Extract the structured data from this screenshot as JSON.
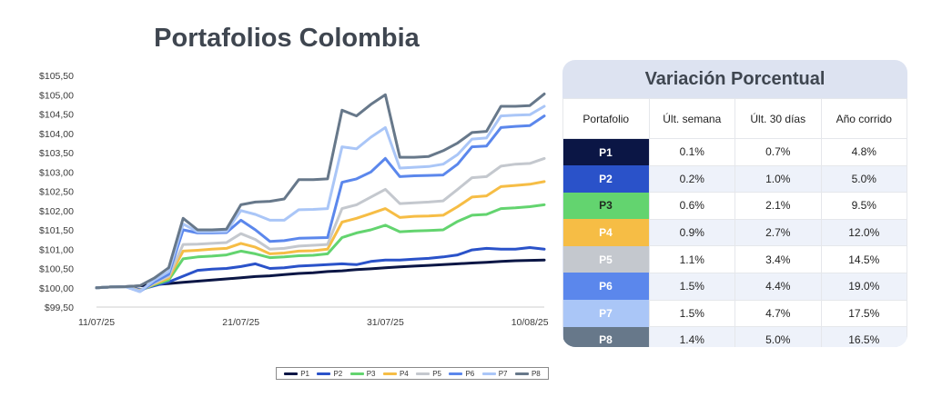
{
  "chart_data": {
    "type": "line",
    "title": "Portafolios Colombia",
    "x": [
      "11/07/25",
      "12/07/25",
      "13/07/25",
      "14/07/25",
      "15/07/25",
      "16/07/25",
      "17/07/25",
      "18/07/25",
      "19/07/25",
      "20/07/25",
      "21/07/25",
      "22/07/25",
      "23/07/25",
      "24/07/25",
      "25/07/25",
      "26/07/25",
      "27/07/25",
      "28/07/25",
      "29/07/25",
      "30/07/25",
      "31/07/25",
      "01/08/25",
      "02/08/25",
      "03/08/25",
      "04/08/25",
      "05/08/25",
      "06/08/25",
      "07/08/25",
      "08/08/25",
      "09/08/25",
      "10/08/25",
      "11/08/25"
    ],
    "x_ticks": [
      "11/07/25",
      "21/07/25",
      "31/07/25",
      "10/08/25"
    ],
    "y_ticks": [
      "$99,50",
      "$100,00",
      "$100,50",
      "$101,00",
      "$101,50",
      "$102,00",
      "$102,50",
      "$103,00",
      "$103,50",
      "$104,00",
      "$104,50",
      "$105,00",
      "$105,50"
    ],
    "ylim": [
      99.5,
      105.5
    ],
    "grid": false,
    "legend_position": "bottom",
    "series": [
      {
        "name": "P1",
        "color": "#0b1645",
        "values": [
          100.0,
          100.02,
          100.03,
          100.05,
          100.08,
          100.11,
          100.14,
          100.17,
          100.2,
          100.23,
          100.26,
          100.29,
          100.31,
          100.34,
          100.37,
          100.39,
          100.42,
          100.44,
          100.47,
          100.49,
          100.52,
          100.54,
          100.56,
          100.58,
          100.6,
          100.62,
          100.64,
          100.66,
          100.68,
          100.7,
          100.71,
          100.72
        ]
      },
      {
        "name": "P2",
        "color": "#2a52c9",
        "values": [
          100.0,
          100.02,
          100.03,
          99.95,
          100.05,
          100.15,
          100.3,
          100.45,
          100.48,
          100.5,
          100.55,
          100.62,
          100.5,
          100.52,
          100.56,
          100.58,
          100.6,
          100.62,
          100.6,
          100.68,
          100.72,
          100.72,
          100.74,
          100.76,
          100.8,
          100.85,
          100.98,
          101.02,
          101.0,
          101.0,
          101.04,
          101.0
        ]
      },
      {
        "name": "P3",
        "color": "#63d46f",
        "values": [
          100.0,
          100.02,
          100.03,
          99.93,
          100.08,
          100.2,
          100.75,
          100.8,
          100.82,
          100.85,
          100.95,
          100.88,
          100.78,
          100.8,
          100.83,
          100.84,
          100.88,
          101.3,
          101.42,
          101.5,
          101.62,
          101.45,
          101.47,
          101.48,
          101.5,
          101.72,
          101.88,
          101.9,
          102.05,
          102.07,
          102.1,
          102.15
        ]
      },
      {
        "name": "P4",
        "color": "#f6bd45",
        "values": [
          100.0,
          100.02,
          100.03,
          99.93,
          100.1,
          100.25,
          100.95,
          100.97,
          101.0,
          101.02,
          101.15,
          101.05,
          100.88,
          100.9,
          100.95,
          100.96,
          101.0,
          101.7,
          101.8,
          101.92,
          102.05,
          101.82,
          101.85,
          101.86,
          101.88,
          102.1,
          102.35,
          102.38,
          102.62,
          102.65,
          102.68,
          102.75
        ]
      },
      {
        "name": "P5",
        "color": "#c4c8ce",
        "values": [
          100.0,
          100.02,
          100.03,
          99.92,
          100.12,
          100.3,
          101.12,
          101.13,
          101.15,
          101.17,
          101.4,
          101.25,
          101.0,
          101.02,
          101.08,
          101.1,
          101.12,
          102.05,
          102.15,
          102.35,
          102.55,
          102.18,
          102.2,
          102.22,
          102.25,
          102.55,
          102.85,
          102.88,
          103.15,
          103.2,
          103.22,
          103.35
        ]
      },
      {
        "name": "P6",
        "color": "#5b87ec",
        "values": [
          100.0,
          100.02,
          100.03,
          99.9,
          100.15,
          100.35,
          101.5,
          101.42,
          101.42,
          101.43,
          101.75,
          101.5,
          101.2,
          101.22,
          101.28,
          101.29,
          101.3,
          102.73,
          102.82,
          103.0,
          103.35,
          102.88,
          102.9,
          102.91,
          102.92,
          103.2,
          103.65,
          103.67,
          104.15,
          104.18,
          104.2,
          104.45
        ]
      },
      {
        "name": "P7",
        "color": "#aac6f7",
        "values": [
          100.0,
          100.02,
          100.03,
          99.9,
          100.2,
          100.42,
          101.65,
          101.45,
          101.45,
          101.46,
          102.0,
          101.9,
          101.75,
          101.75,
          102.02,
          102.03,
          102.05,
          103.65,
          103.6,
          103.9,
          104.15,
          103.1,
          103.12,
          103.14,
          103.2,
          103.45,
          103.85,
          103.88,
          104.45,
          104.47,
          104.48,
          104.7
        ]
      },
      {
        "name": "P8",
        "color": "#67788a",
        "values": [
          100.0,
          100.02,
          100.03,
          100.05,
          100.25,
          100.52,
          101.8,
          101.5,
          101.5,
          101.52,
          102.15,
          102.22,
          102.24,
          102.3,
          102.8,
          102.8,
          102.82,
          104.6,
          104.45,
          104.75,
          105.0,
          103.38,
          103.38,
          103.4,
          103.55,
          103.75,
          104.02,
          104.05,
          104.7,
          104.7,
          104.72,
          105.02
        ]
      }
    ]
  },
  "table": {
    "title": "Variación Porcentual",
    "headers": [
      "Portafolio",
      "Últ. semana",
      "Últ. 30 días",
      "Año corrido"
    ],
    "rows": [
      {
        "name": "P1",
        "color": "#0b1645",
        "text": "#ffffff",
        "week": "0.1%",
        "month": "0.7%",
        "ytd": "4.8%"
      },
      {
        "name": "P2",
        "color": "#2a52c9",
        "text": "#ffffff",
        "week": "0.2%",
        "month": "1.0%",
        "ytd": "5.0%"
      },
      {
        "name": "P3",
        "color": "#63d46f",
        "text": "#1f2a1f",
        "week": "0.6%",
        "month": "2.1%",
        "ytd": "9.5%"
      },
      {
        "name": "P4",
        "color": "#f6bd45",
        "text": "#ffffff",
        "week": "0.9%",
        "month": "2.7%",
        "ytd": "12.0%"
      },
      {
        "name": "P5",
        "color": "#c4c8ce",
        "text": "#ffffff",
        "week": "1.1%",
        "month": "3.4%",
        "ytd": "14.5%"
      },
      {
        "name": "P6",
        "color": "#5b87ec",
        "text": "#ffffff",
        "week": "1.5%",
        "month": "4.4%",
        "ytd": "19.0%"
      },
      {
        "name": "P7",
        "color": "#aac6f7",
        "text": "#ffffff",
        "week": "1.5%",
        "month": "4.7%",
        "ytd": "17.5%"
      },
      {
        "name": "P8",
        "color": "#67788a",
        "text": "#ffffff",
        "week": "1.4%",
        "month": "5.0%",
        "ytd": "16.5%"
      }
    ]
  }
}
